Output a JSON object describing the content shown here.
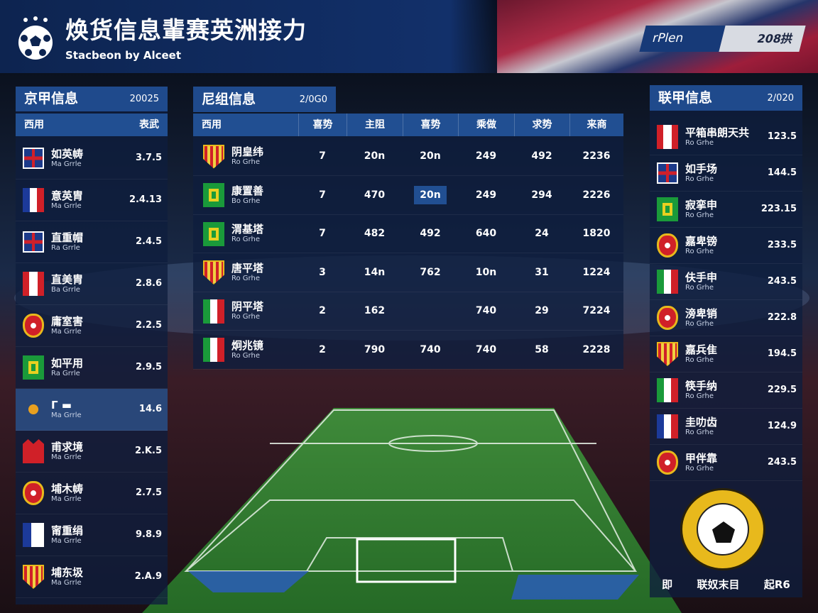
{
  "header": {
    "title": "焕货信息輩赛英洲接力",
    "subtitle": "Stacbeon by Alceet",
    "plan_label": "rPlen",
    "plan_value": "208拱"
  },
  "left_panel": {
    "title": "京甲信息",
    "year": "20025",
    "col_left": "西用",
    "col_right": "表武",
    "rows": [
      {
        "name": "如英帱",
        "sub": "Ma Grrle",
        "value": "3.7.5",
        "crest": "uk-flag"
      },
      {
        "name": "意英胄",
        "sub": "Ma Grrle",
        "value": "2.4.13",
        "crest": "france-flag"
      },
      {
        "name": "直重帽",
        "sub": "Ra Grrle",
        "value": "2.4.5",
        "crest": "uk-flag"
      },
      {
        "name": "直美胄",
        "sub": "Ba Grrle",
        "value": "2.8.6",
        "crest": "peru-flag"
      },
      {
        "name": "庸室害",
        "sub": "Ma Grrle",
        "value": "2.2.5",
        "crest": "red-shield"
      },
      {
        "name": "如平用",
        "sub": "Ra Grrle",
        "value": "2.9.5",
        "crest": "green-square"
      },
      {
        "name": "Γ ▬",
        "sub": "Ma Grrle",
        "value": "14.6",
        "crest": "anchor-crest",
        "highlight": true
      },
      {
        "name": "甫求境",
        "sub": "Ma Grrle",
        "value": "2.K.5",
        "crest": "red-crown"
      },
      {
        "name": "埔木帱",
        "sub": "Ma Grrle",
        "value": "2.7.5",
        "crest": "red-shield"
      },
      {
        "name": "甯重绢",
        "sub": "Ma Grrle",
        "value": "9.8.9",
        "crest": "blue-flag"
      },
      {
        "name": "埔东圾",
        "sub": "Ma Grrle",
        "value": "2.A.9",
        "crest": "striped-shield"
      }
    ]
  },
  "middle_panel": {
    "title": "尼组信息",
    "year": "2/0G0",
    "columns": [
      "西用",
      "喜势",
      "主阻",
      "喜势",
      "乘做",
      "求势",
      "来商"
    ],
    "rows": [
      {
        "name": "阴皇纬",
        "sub": "Ro Grhe",
        "crest": "striped-shield",
        "cells": [
          "7",
          "20n",
          "20n",
          "249",
          "492",
          "2236"
        ]
      },
      {
        "name": "康置善",
        "sub": "Bo Grhe",
        "crest": "green-square",
        "cells": [
          "7",
          "470",
          "20n",
          "249",
          "294",
          "2226"
        ],
        "highlight_col": 2
      },
      {
        "name": "渭基塔",
        "sub": "Ro Grhe",
        "crest": "green-square",
        "cells": [
          "7",
          "482",
          "492",
          "640",
          "24",
          "1820"
        ]
      },
      {
        "name": "唐平塔",
        "sub": "Ro Grhe",
        "crest": "striped-shield",
        "cells": [
          "3",
          "14n",
          "762",
          "10n",
          "31",
          "1224"
        ]
      },
      {
        "name": "阴平塔",
        "sub": "Ro Grhe",
        "crest": "italy-flag",
        "cells": [
          "2",
          "162",
          "",
          "740",
          "29",
          "7224"
        ]
      },
      {
        "name": "炯兆镜",
        "sub": "Ro Grhe",
        "crest": "italy-flag",
        "cells": [
          "2",
          "790",
          "740",
          "740",
          "58",
          "2228"
        ]
      }
    ]
  },
  "right_panel": {
    "title": "联甲信息",
    "year": "2/020",
    "rows": [
      {
        "name": "平箱串朗天共",
        "sub": "Ro Grhe",
        "value": "123.5",
        "crest": "peru-flag"
      },
      {
        "name": "如手场",
        "sub": "Ro Grhe",
        "value": "144.5",
        "crest": "uk-flag"
      },
      {
        "name": "寂挛申",
        "sub": "Ro Grhe",
        "value": "223.15",
        "crest": "green-square"
      },
      {
        "name": "嘉卑镑",
        "sub": "Ro Grhe",
        "value": "233.5",
        "crest": "red-shield"
      },
      {
        "name": "伕手申",
        "sub": "Ro Grhe",
        "value": "243.5",
        "crest": "italy-flag"
      },
      {
        "name": "滂卑销",
        "sub": "Ro Grhe",
        "value": "222.8",
        "crest": "red-shield"
      },
      {
        "name": "嘉兵隹",
        "sub": "Ro Grhe",
        "value": "194.5",
        "crest": "striped-shield"
      },
      {
        "name": "筷手纳",
        "sub": "Ro Grhe",
        "value": "229.5",
        "crest": "italy-flag"
      },
      {
        "name": "圭叻齿",
        "sub": "Ro Grhe",
        "value": "124.9",
        "crest": "france-flag"
      },
      {
        "name": "甲伴靠",
        "sub": "Ro Grhe",
        "value": "243.5",
        "crest": "red-shield"
      }
    ],
    "footer": [
      "即",
      "联奴末目",
      "起R6"
    ]
  },
  "colors": {
    "navy": "#0d2450",
    "panel_title": "#1f4a8c",
    "pitch": "#2e7a2e",
    "badge": "#e8b91c"
  }
}
